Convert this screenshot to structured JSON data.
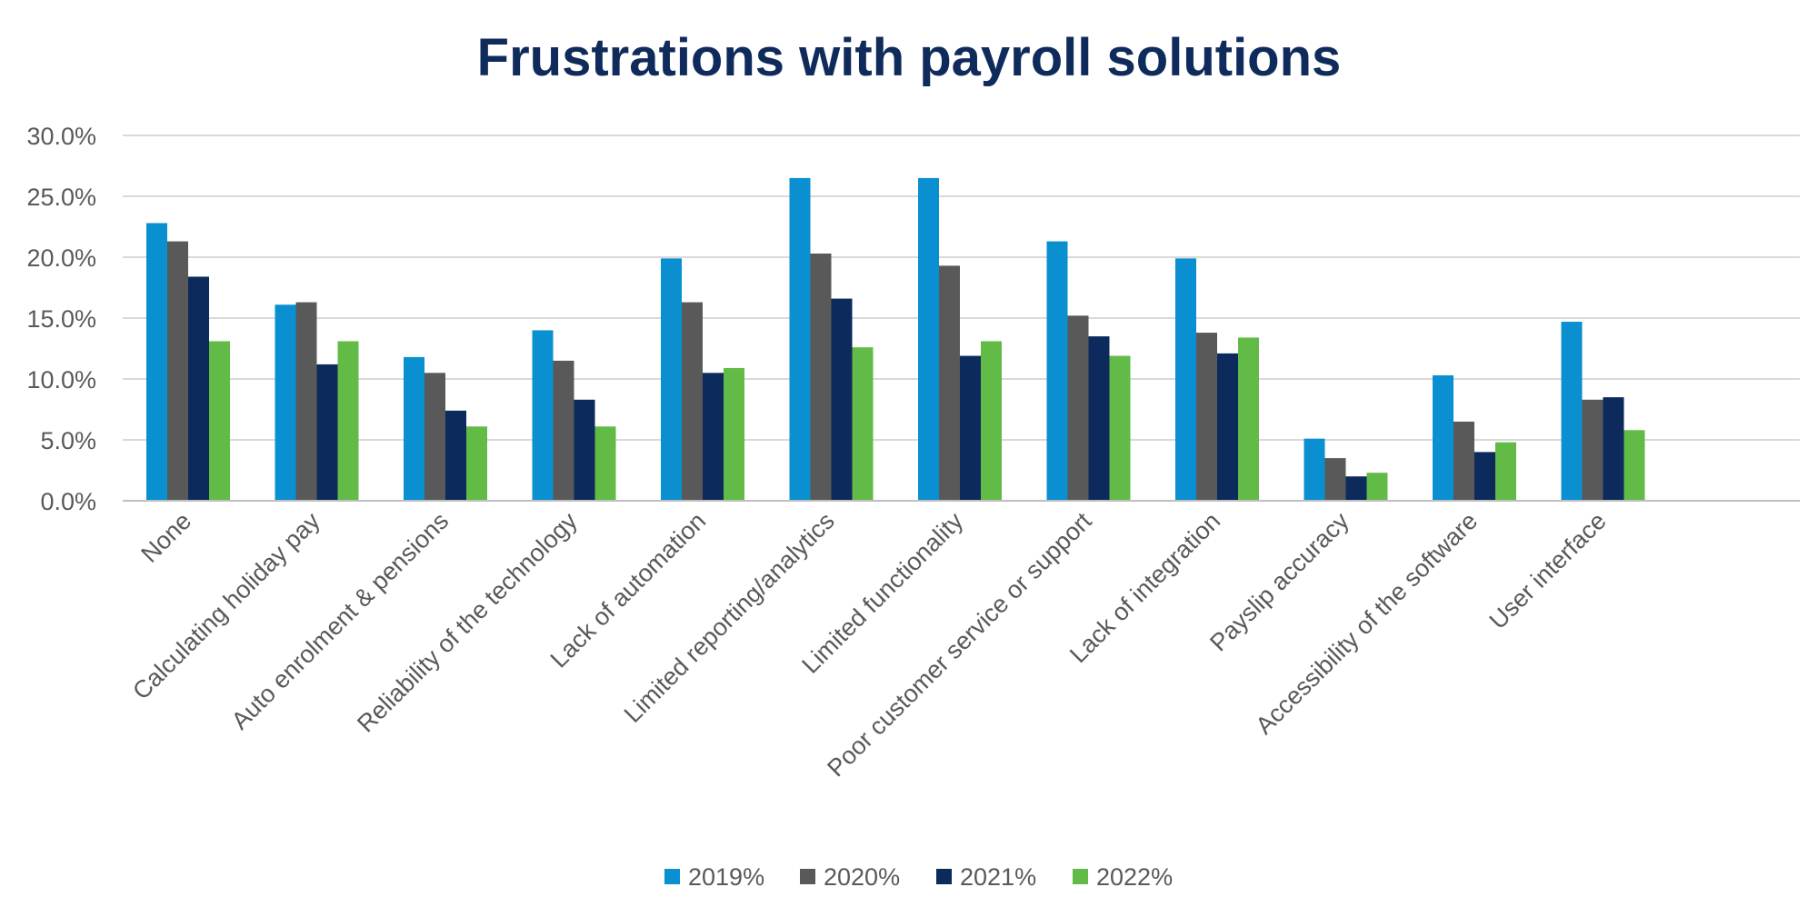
{
  "chart_data": {
    "type": "bar",
    "title": "Frustrations with payroll solutions",
    "xlabel": "",
    "ylabel": "",
    "ylim": [
      0,
      30
    ],
    "yticks": [
      "0.0%",
      "5.0%",
      "10.0%",
      "15.0%",
      "20.0%",
      "25.0%",
      "30.0%"
    ],
    "grid": true,
    "legend_position": "bottom",
    "categories": [
      "None",
      "Calculating holiday pay",
      "Auto enrolment & pensions",
      "Reliability of the technology",
      "Lack of automation",
      "Limited reporting/analytics",
      "Limited functionality",
      "Poor customer service or support",
      "Lack of integration",
      "Payslip accuracy",
      "Accessibility of the software",
      "User interface"
    ],
    "series": [
      {
        "name": "2019%",
        "color": "#0a8fd1",
        "values": [
          22.8,
          16.1,
          11.8,
          14.0,
          19.9,
          26.5,
          26.5,
          21.3,
          19.9,
          5.1,
          10.3,
          14.7
        ]
      },
      {
        "name": "2020%",
        "color": "#595959",
        "values": [
          21.3,
          16.3,
          10.5,
          11.5,
          16.3,
          20.3,
          19.3,
          15.2,
          13.8,
          3.5,
          6.5,
          8.3
        ]
      },
      {
        "name": "2021%",
        "color": "#0d2a5c",
        "values": [
          18.4,
          11.2,
          7.4,
          8.3,
          10.5,
          16.6,
          11.9,
          13.5,
          12.1,
          2.0,
          4.0,
          8.5
        ]
      },
      {
        "name": "2022%",
        "color": "#62bb46",
        "values": [
          13.1,
          13.1,
          6.1,
          6.1,
          10.9,
          12.6,
          13.1,
          11.9,
          13.4,
          2.3,
          4.8,
          5.8
        ]
      }
    ]
  }
}
